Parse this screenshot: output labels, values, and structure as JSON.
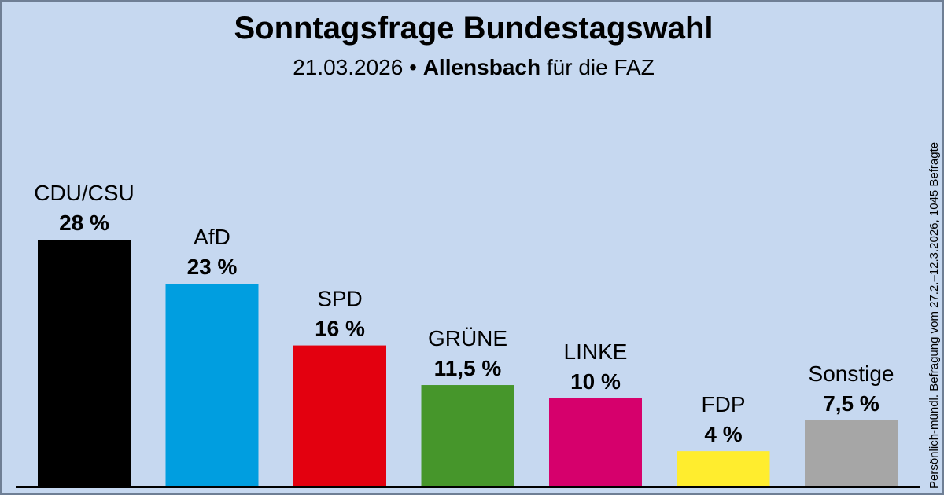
{
  "header": {
    "title": "Sonntagsfrage Bundestagswahl",
    "date": "21.03.2026",
    "separator": "•",
    "institute": "Allensbach",
    "client": "für die FAZ"
  },
  "footnote": "Persönlich-mündl. Befragung vom 27.2.–12.3.2026, 1045 Befragte",
  "chart_data": {
    "type": "bar",
    "title": "Sonntagsfrage Bundestagswahl",
    "categories": [
      "CDU/CSU",
      "AfD",
      "SPD",
      "GRÜNE",
      "LINKE",
      "FDP",
      "Sonstige"
    ],
    "values": [
      28,
      23,
      16,
      11.5,
      10,
      4,
      7.5
    ],
    "value_labels": [
      "28 %",
      "23 %",
      "16 %",
      "11,5 %",
      "10 %",
      "4 %",
      "7,5 %"
    ],
    "colors": [
      "#000000",
      "#009ee0",
      "#e3000f",
      "#46962b",
      "#d6006c",
      "#ffed2e",
      "#a6a6a6"
    ],
    "unit": "%",
    "ylim": [
      0,
      28
    ],
    "xlabel": "",
    "ylabel": "",
    "grid": false
  }
}
